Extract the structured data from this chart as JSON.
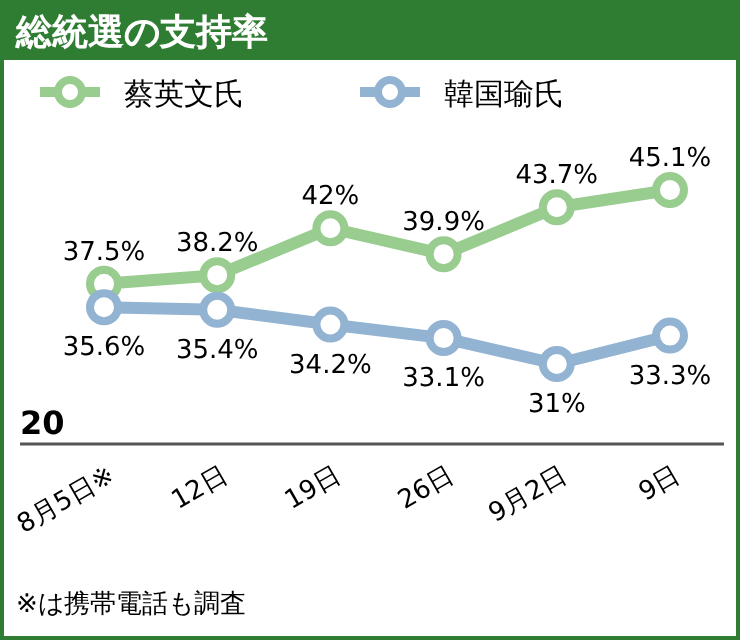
{
  "chart_data": {
    "type": "line",
    "title": "総統選の支持率",
    "categories": [
      "8月5日※",
      "12日",
      "19日",
      "26日",
      "9月2日",
      "9日"
    ],
    "series": [
      {
        "name": "蔡英文氏",
        "color": "#99cc8f",
        "values": [
          37.5,
          38.2,
          42,
          39.9,
          43.7,
          45.1
        ],
        "value_labels": [
          "37.5%",
          "38.2%",
          "42%",
          "39.9%",
          "43.7%",
          "45.1%"
        ]
      },
      {
        "name": "韓国瑜氏",
        "color": "#93b3d3",
        "values": [
          35.6,
          35.4,
          34.2,
          33.1,
          31,
          33.3
        ],
        "value_labels": [
          "35.6%",
          "35.4%",
          "34.2%",
          "33.1%",
          "31%",
          "33.3%"
        ]
      }
    ],
    "legend": "top",
    "marker": "circle",
    "annotations": [
      "20",
      "※は携帯電話も調査"
    ]
  }
}
